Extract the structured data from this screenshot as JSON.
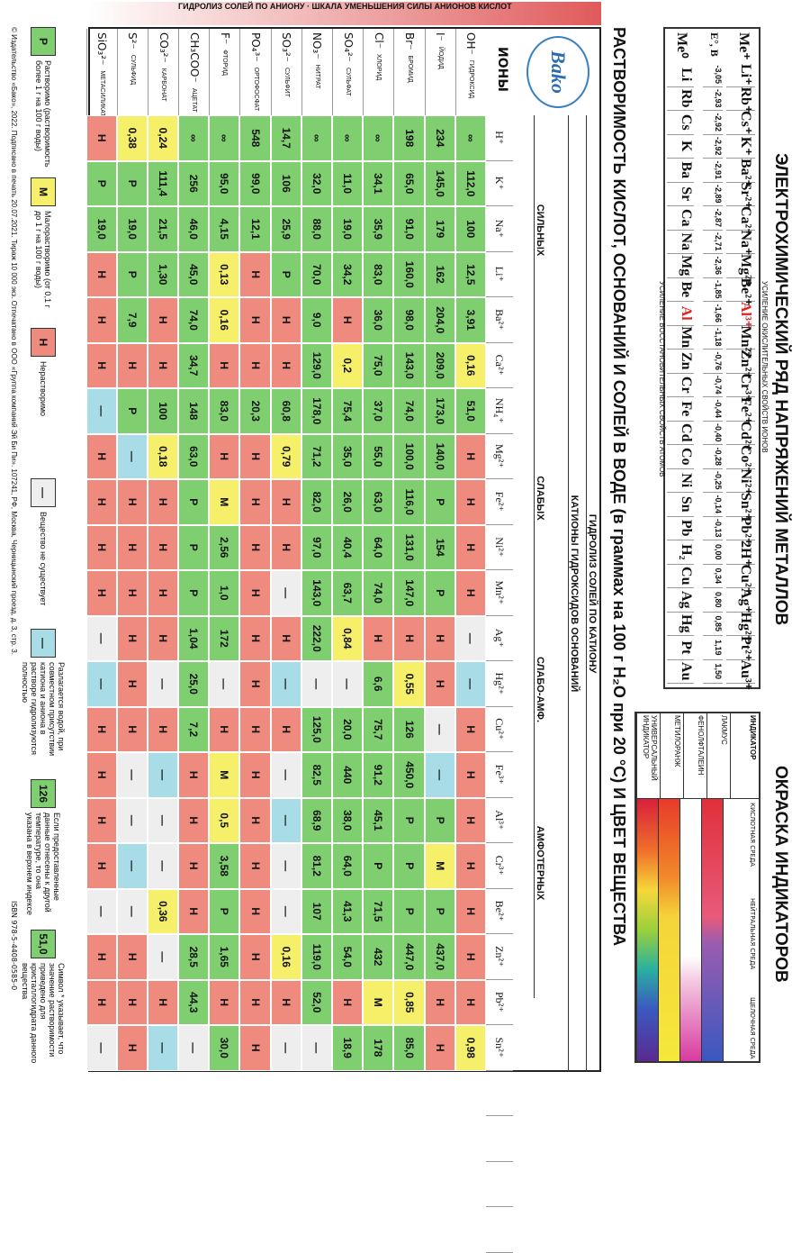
{
  "titles": {
    "series": "ЭЛЕКТРОХИМИЧЕСКИЙ РЯД НАПРЯЖЕНИЙ МЕТАЛЛОВ",
    "indicators": "ОКРАСКА ИНДИКАТОРОВ",
    "solubility": "РАСТВОРИМОСТЬ КИСЛОТ, ОСНОВАНИЙ И СОЛЕЙ В ВОДЕ (в граммах на 100 г H₂O при 20 °C) И ЦВЕТ ВЕЩЕСТВА"
  },
  "series": {
    "row1_label": "Me⁺",
    "row2_label": "E°, В",
    "row3_label": "Me⁰",
    "ions": [
      "Li⁺",
      "Rb⁺",
      "Cs⁺",
      "K⁺",
      "Ba²⁺",
      "Sr²⁺",
      "Ca²⁺",
      "Na⁺",
      "Mg²⁺",
      "Be²⁺",
      "Al³⁺",
      "Mn²⁺",
      "Zn²⁺",
      "Cr³⁺",
      "Fe²⁺",
      "Cd²⁺",
      "Co²⁺",
      "Ni²⁺",
      "Sn²⁺",
      "Pb²⁺",
      "2H⁺",
      "Cu²⁺",
      "Ag⁺",
      "Hg²⁺",
      "Pt²⁺",
      "Au³⁺"
    ],
    "potentials": [
      "-3,05",
      "-2,93",
      "-2,92",
      "-2,92",
      "-2,91",
      "-2,89",
      "-2,87",
      "-2,71",
      "-2,36",
      "-1,85",
      "-1,66",
      "-1,18",
      "-0,76",
      "-0,74",
      "-0,44",
      "-0,40",
      "-0,28",
      "-0,25",
      "-0,14",
      "-0,13",
      "0,00",
      "0,34",
      "0,80",
      "0,85",
      "1,19",
      "1,50"
    ],
    "metals": [
      "Li",
      "Rb",
      "Cs",
      "K",
      "Ba",
      "Sr",
      "Ca",
      "Na",
      "Mg",
      "Be",
      "Al",
      "Mn",
      "Zn",
      "Cr",
      "Fe",
      "Cd",
      "Co",
      "Ni",
      "Sn",
      "Pb",
      "H₂",
      "Cu",
      "Ag",
      "Hg",
      "Pt",
      "Au"
    ],
    "ox_arrow": "УСИЛЕНИЕ ОКИСЛИТЕЛЬНЫХ СВОЙСТВ ИОНОВ",
    "red_arrow": "УСИЛЕНИЕ ВОССТАНОВИТЕЛЬНЫХ СВОЙСТВ АТОМОВ"
  },
  "indicators": {
    "col_header": "ИНДИКАТОР",
    "media": [
      "КИСЛОТНАЯ СРЕДА",
      "НЕЙТРАЛЬНАЯ СРЕДА",
      "ЩЕЛОЧНАЯ СРЕДА"
    ],
    "names": [
      "ЛАКМУС",
      "ФЕНОЛФТАЛЕИН",
      "МЕТИЛОРАНЖ",
      "УНИВЕРСАЛЬНЫЙ ИНДИКАТОР"
    ],
    "gradients": [
      "linear-gradient(90deg,#e0303a,#e85a7a 45%,#9a5cb0 55%,#3a58c0)",
      "linear-gradient(90deg,#fff 60%,#f3c6e0 70%,#d83aa0)",
      "linear-gradient(90deg,#e83a2a,#f08a2a 30%,#f5d43a 45%,#f5e83a)",
      "linear-gradient(90deg,#d8203a,#f0702a 20%,#f5d83a 35%,#9ad03a 50%,#2ab0a0 65%,#3a5ac0 80%,#5a2a90)"
    ]
  },
  "table": {
    "group_top": "ГИДРОЛИЗ СОЛЕЙ ПО КАТИОНУ",
    "group_mid": "КАТИОНЫ ГИДРОКСИДОВ ОСНОВАНИЙ",
    "g_strong": "СИЛЬНЫХ",
    "g_weak": "СЛАБЫХ",
    "g_weakamph": "СЛАБО-АМФ.",
    "g_amph": "АМФОТЕРНЫХ",
    "ions_header": "ИОНЫ",
    "side_label": "ГИДРОЛИЗ СОЛЕЙ ПО АНИОНУ · ШКАЛА УМЕНЬШЕНИЯ СИЛЫ АНИОНОВ КИСЛОТ",
    "cations": [
      "H⁺",
      "K⁺",
      "Na⁺",
      "Li⁺",
      "Ba²⁺",
      "Ca²⁺",
      "NH₄⁺",
      "Mg²⁺",
      "Fe²⁺",
      "Ni²⁺",
      "Mn²⁺",
      "Ag⁺",
      "Hg²⁺",
      "Cu²⁺",
      "Fe³⁺",
      "Al³⁺",
      "Cr³⁺",
      "Be²⁺",
      "Zn²⁺",
      "Pb²⁺",
      "Sn²⁺",
      "",
      "",
      "",
      ""
    ],
    "anions": [
      {
        "f": "OH⁻",
        "n": "ГИДРОКСИД"
      },
      {
        "f": "I⁻",
        "n": "ЙОДИД"
      },
      {
        "f": "Br⁻",
        "n": "БРОМИД"
      },
      {
        "f": "Cl⁻",
        "n": "ХЛОРИД"
      },
      {
        "f": "SO₄²⁻",
        "n": "СУЛЬФАТ"
      },
      {
        "f": "NO₃⁻",
        "n": "НИТРАТ"
      },
      {
        "f": "SO₃²⁻",
        "n": "СУЛЬФИТ"
      },
      {
        "f": "PO₄³⁻",
        "n": "ОРТОФОСФАТ"
      },
      {
        "f": "F⁻",
        "n": "ФТОРИД"
      },
      {
        "f": "CH₃COO⁻",
        "n": "АЦЕТАТ"
      },
      {
        "f": "CO₃²⁻",
        "n": "КАРБОНАТ"
      },
      {
        "f": "S²⁻",
        "n": "СУЛЬФИД"
      },
      {
        "f": "SiO₃²⁻",
        "n": "МЕТАСИЛИКАТ"
      }
    ],
    "rows": [
      [
        "∞",
        "112,0",
        "100",
        "12,5",
        "3,91",
        "0,16",
        "51,0",
        "Н",
        "Н",
        "Н",
        "Н",
        "—",
        "—",
        "Н",
        "Н",
        "Н",
        "Н",
        "Н",
        "Н",
        "Н",
        "0,98"
      ],
      [
        "234",
        "145,0",
        "179",
        "162",
        "204,0",
        "209,0",
        "173,0",
        "140,0",
        "Р",
        "154",
        "Р",
        "Н",
        "Н",
        "—",
        "—",
        "Р",
        "М",
        "Р",
        "437,0",
        "Н",
        "Н"
      ],
      [
        "198",
        "65,0",
        "91,0",
        "160,0",
        "98,0",
        "143,0",
        "74,0",
        "100,0",
        "116,0",
        "131,0",
        "147,0",
        "Н",
        "0,55",
        "126",
        "450,0",
        "Р",
        "Р",
        "Р",
        "447,0",
        "0,85",
        "85,0"
      ],
      [
        "∞",
        "34,1",
        "35,9",
        "83,0",
        "36,0",
        "75,0",
        "37,0",
        "55,0",
        "63,0",
        "64,0",
        "74,0",
        "Н",
        "6,6",
        "75,7",
        "91,2",
        "45,1",
        "Р",
        "71,5",
        "432",
        "М",
        "178"
      ],
      [
        "∞",
        "11,0",
        "19,0",
        "34,2",
        "Н",
        "0,2",
        "75,4",
        "35,0",
        "26,0",
        "40,4",
        "63,7",
        "0,84",
        "—",
        "20,0",
        "440",
        "38,0",
        "64,0",
        "41,3",
        "54,0",
        "Н",
        "18,9"
      ],
      [
        "∞",
        "32,0",
        "88,0",
        "70,0",
        "9,0",
        "129,0",
        "178,0",
        "71,2",
        "82,0",
        "97,0",
        "143,0",
        "222,0",
        "—",
        "125,0",
        "82,5",
        "68,9",
        "81,2",
        "107",
        "119,0",
        "52,0",
        "—"
      ],
      [
        "14,7",
        "106",
        "25,9",
        "Р",
        "Н",
        "Н",
        "60,8",
        "0,79",
        "Н",
        "Н",
        "—",
        "Н",
        "—",
        "Н",
        "—",
        "—",
        "—",
        "—",
        "0,16",
        "Н",
        "—"
      ],
      [
        "548",
        "99,0",
        "12,1",
        "Н",
        "Н",
        "Н",
        "20,3",
        "Н",
        "Н",
        "Н",
        "Н",
        "Н",
        "Н",
        "Н",
        "Н",
        "Н",
        "Н",
        "Н",
        "Н",
        "Н",
        "Н"
      ],
      [
        "∞",
        "95,0",
        "4,15",
        "0,13",
        "0,16",
        "Н",
        "83,0",
        "Н",
        "М",
        "2,56",
        "1,0",
        "172",
        "—",
        "Н",
        "М",
        "0,5",
        "3,58",
        "Р",
        "1,65",
        "Н",
        "30,0"
      ],
      [
        "∞",
        "256",
        "46,0",
        "45,0",
        "74,0",
        "34,7",
        "148",
        "63,0",
        "Р",
        "Р",
        "Р",
        "1,04",
        "25,0",
        "7,2",
        "Н",
        "Н",
        "Н",
        "Н",
        "28,5",
        "44,3",
        "—"
      ],
      [
        "0,24",
        "111,4",
        "21,5",
        "1,30",
        "Н",
        "Н",
        "100",
        "0,18",
        "Н",
        "Н",
        "Н",
        "Н",
        "—",
        "Н",
        "—",
        "—",
        "—",
        "0,36",
        "—",
        "Н",
        "—"
      ],
      [
        "0,38",
        "Р",
        "19,0",
        "Р",
        "7,9",
        "Н",
        "Р",
        "—",
        "Н",
        "Н",
        "Н",
        "Н",
        "Н",
        "Н",
        "—",
        "—",
        "—",
        "—",
        "Н",
        "Н",
        "Н"
      ],
      [
        "Н",
        "Р",
        "19,0",
        "Н",
        "Н",
        "Н",
        "—",
        "Н",
        "Н",
        "Н",
        "Н",
        "—",
        "—",
        "Н",
        "Н",
        "Н",
        "Н",
        "—",
        "Н",
        "Н",
        "—"
      ]
    ]
  },
  "legend": [
    {
      "code": "Р",
      "cls": "P",
      "text": "Растворимо (растворимость более 1 г на 100 г воды)"
    },
    {
      "code": "М",
      "cls": "M",
      "text": "Малорастворимо (от 0,1 г до 1 г на 100 г воды)"
    },
    {
      "code": "Н",
      "cls": "N",
      "text": "Нерастворимо"
    },
    {
      "code": "—",
      "cls": "X",
      "text": "Вещество не существует"
    },
    {
      "code": "—",
      "cls": "D",
      "text": "Разлагается водой, при совместном присутствии катиона и аниона в растворе гидролизуются полностью"
    },
    {
      "code": "126",
      "cls": "P",
      "text": "Если предоставленные данные отнесены к другой температуре, то она указана в верхнем индексе"
    },
    {
      "code": "51,0",
      "cls": "P",
      "text": "Символ * указывает, что значение растворимости приведено для кристаллогидрата данного вещества"
    }
  ],
  "footer": "© Издательство «Бако», 2022. Подписано в печать 20.07.2021. Тираж 10 000 экз. Отпечатано в ООО «Группа компаний Эй Би Пи». 107241, РФ, Москва, Черницынский проезд, д. 3, стр. 3.",
  "isbn": "ISBN 978-5-4408-0585-0",
  "logo": "Bako"
}
